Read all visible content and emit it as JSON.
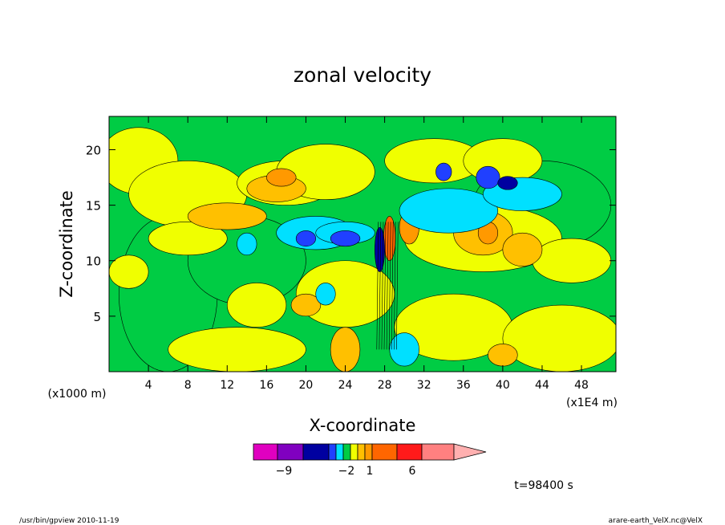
{
  "chart_data": {
    "type": "heatmap",
    "title": "zonal velocity",
    "xlabel": "X-coordinate",
    "ylabel": "Z-coordinate",
    "x_unit_label": "(x1E4 m)",
    "y_unit_label": "(x1000 m)",
    "xlim": [
      0,
      51.5
    ],
    "ylim": [
      0,
      23
    ],
    "x_ticks": [
      "4",
      "8",
      "12",
      "16",
      "20",
      "24",
      "28",
      "32",
      "36",
      "40",
      "44",
      "48"
    ],
    "y_ticks": [
      "5",
      "10",
      "15",
      "20"
    ],
    "colorbar": {
      "levels": [
        -9,
        -2,
        1,
        6
      ],
      "level_labels": [
        "−9",
        "−2",
        "1",
        "6"
      ],
      "bins": [
        {
          "color": "#e000c0"
        },
        {
          "color": "#8000c0"
        },
        {
          "color": "#0000a0"
        },
        {
          "color": "#2040ff"
        },
        {
          "color": "#00e0ff"
        },
        {
          "color": "#00cc44"
        },
        {
          "color": "#f0ff00"
        },
        {
          "color": "#ffc000"
        },
        {
          "color": "#ff9900"
        },
        {
          "color": "#ff6600"
        },
        {
          "color": "#ff1a1a"
        },
        {
          "color": "#ff8080"
        },
        {
          "color": "#ffb0b0"
        }
      ]
    },
    "background_value": "green",
    "time_label": "t=98400 s",
    "blobs": [
      {
        "x": 44,
        "z": 15,
        "rx": 7,
        "rz": 4,
        "c": "#00cc44"
      },
      {
        "x": 6,
        "z": 7,
        "rx": 5,
        "rz": 7,
        "c": "#00cc44"
      },
      {
        "x": 14,
        "z": 10,
        "rx": 6,
        "rz": 4,
        "c": "#00cc44"
      },
      {
        "x": 3,
        "z": 19,
        "rx": 4,
        "rz": 3,
        "c": "#f0ff00"
      },
      {
        "x": 8,
        "z": 16,
        "rx": 6,
        "rz": 3,
        "c": "#f0ff00"
      },
      {
        "x": 18,
        "z": 17,
        "rx": 5,
        "rz": 2,
        "c": "#f0ff00"
      },
      {
        "x": 22,
        "z": 18,
        "rx": 5,
        "rz": 2.5,
        "c": "#f0ff00"
      },
      {
        "x": 33,
        "z": 19,
        "rx": 5,
        "rz": 2,
        "c": "#f0ff00"
      },
      {
        "x": 40,
        "z": 19,
        "rx": 4,
        "rz": 2,
        "c": "#f0ff00"
      },
      {
        "x": 38,
        "z": 12,
        "rx": 8,
        "rz": 3,
        "c": "#f0ff00"
      },
      {
        "x": 24,
        "z": 7,
        "rx": 5,
        "rz": 3,
        "c": "#f0ff00"
      },
      {
        "x": 15,
        "z": 6,
        "rx": 3,
        "rz": 2,
        "c": "#f0ff00"
      },
      {
        "x": 13,
        "z": 2,
        "rx": 7,
        "rz": 2,
        "c": "#f0ff00"
      },
      {
        "x": 35,
        "z": 4,
        "rx": 6,
        "rz": 3,
        "c": "#f0ff00"
      },
      {
        "x": 46,
        "z": 3,
        "rx": 6,
        "rz": 3,
        "c": "#f0ff00"
      },
      {
        "x": 47,
        "z": 10,
        "rx": 4,
        "rz": 2,
        "c": "#f0ff00"
      },
      {
        "x": 2,
        "z": 9,
        "rx": 2,
        "rz": 1.5,
        "c": "#f0ff00"
      },
      {
        "x": 8,
        "z": 12,
        "rx": 4,
        "rz": 1.5,
        "c": "#f0ff00"
      },
      {
        "x": 17,
        "z": 16.5,
        "rx": 3,
        "rz": 1.2,
        "c": "#ffc000"
      },
      {
        "x": 12,
        "z": 14,
        "rx": 4,
        "rz": 1.2,
        "c": "#ffc000"
      },
      {
        "x": 38,
        "z": 12.5,
        "rx": 3,
        "rz": 2,
        "c": "#ffc000"
      },
      {
        "x": 42,
        "z": 11,
        "rx": 2,
        "rz": 1.5,
        "c": "#ffc000"
      },
      {
        "x": 20,
        "z": 6,
        "rx": 1.5,
        "rz": 1,
        "c": "#ffc000"
      },
      {
        "x": 24,
        "z": 2,
        "rx": 1.5,
        "rz": 2,
        "c": "#ffc000"
      },
      {
        "x": 40,
        "z": 1.5,
        "rx": 1.5,
        "rz": 1,
        "c": "#ffc000"
      },
      {
        "x": 17.5,
        "z": 17.5,
        "rx": 1.5,
        "rz": 0.8,
        "c": "#ff9900"
      },
      {
        "x": 38.5,
        "z": 12.5,
        "rx": 1,
        "rz": 1,
        "c": "#ff9900"
      },
      {
        "x": 30.5,
        "z": 13,
        "rx": 1,
        "rz": 1.5,
        "c": "#ff9900"
      },
      {
        "x": 28.5,
        "z": 12,
        "rx": 0.6,
        "rz": 2,
        "c": "#ff6600"
      },
      {
        "x": 21,
        "z": 12.5,
        "rx": 4,
        "rz": 1.5,
        "c": "#00e0ff"
      },
      {
        "x": 34.5,
        "z": 14.5,
        "rx": 5,
        "rz": 2,
        "c": "#00e0ff"
      },
      {
        "x": 42,
        "z": 16,
        "rx": 4,
        "rz": 1.5,
        "c": "#00e0ff"
      },
      {
        "x": 24,
        "z": 12.5,
        "rx": 3,
        "rz": 1,
        "c": "#00e0ff"
      },
      {
        "x": 30,
        "z": 2,
        "rx": 1.5,
        "rz": 1.5,
        "c": "#00e0ff"
      },
      {
        "x": 22,
        "z": 7,
        "rx": 1,
        "rz": 1,
        "c": "#00e0ff"
      },
      {
        "x": 14,
        "z": 11.5,
        "rx": 1,
        "rz": 1,
        "c": "#00e0ff"
      },
      {
        "x": 20,
        "z": 12,
        "rx": 1,
        "rz": 0.7,
        "c": "#2040ff"
      },
      {
        "x": 24,
        "z": 12,
        "rx": 1.5,
        "rz": 0.7,
        "c": "#2040ff"
      },
      {
        "x": 38.5,
        "z": 17.5,
        "rx": 1.2,
        "rz": 1,
        "c": "#2040ff"
      },
      {
        "x": 34,
        "z": 18,
        "rx": 0.8,
        "rz": 0.8,
        "c": "#2040ff"
      },
      {
        "x": 27.5,
        "z": 11,
        "rx": 0.5,
        "rz": 2,
        "c": "#0000a0"
      },
      {
        "x": 40.5,
        "z": 17,
        "rx": 1,
        "rz": 0.6,
        "c": "#0000a0"
      }
    ],
    "jet_band": {
      "x": 28.2,
      "z_from": 2,
      "z_to": 13.5
    }
  },
  "footer": {
    "left": "/usr/bin/gpview   2010-11-19",
    "right": "arare-earth_VelX.nc@VelX"
  }
}
